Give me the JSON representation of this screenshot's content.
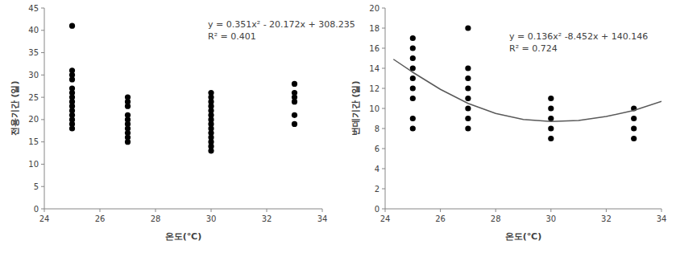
{
  "chart_data": [
    {
      "type": "scatter",
      "xlabel": "온도(℃)",
      "ylabel": "전용기간 (일)",
      "annotations": [
        "y = 0.351x² - 20.172x + 308.235",
        "R² = 0.401"
      ],
      "xlim": [
        24,
        34
      ],
      "xticks": [
        24,
        26,
        28,
        30,
        32,
        34
      ],
      "ylim": [
        0,
        45
      ],
      "yticks": [
        0,
        5,
        10,
        15,
        20,
        25,
        30,
        35,
        40,
        45
      ],
      "grid": false,
      "series": [
        {
          "type": "scatter",
          "color": "#000000",
          "marker": "circle",
          "x": [
            25,
            25,
            25,
            25,
            25,
            25,
            25,
            25,
            25,
            25,
            25,
            25,
            25,
            25,
            27,
            27,
            27,
            27,
            27,
            27,
            27,
            27,
            27,
            27,
            30,
            30,
            30,
            30,
            30,
            30,
            30,
            30,
            30,
            30,
            30,
            30,
            30,
            30,
            33,
            33,
            33,
            33,
            33,
            33
          ],
          "values": [
            41,
            31,
            30,
            29,
            27,
            26,
            25,
            24,
            23,
            22,
            21,
            20,
            19,
            18,
            25,
            24,
            23,
            21,
            20,
            19,
            18,
            17,
            16,
            15,
            26,
            25,
            24,
            23,
            22,
            21,
            20,
            19,
            18,
            17,
            16,
            15,
            14,
            13,
            28,
            26,
            25,
            24,
            21,
            19
          ]
        }
      ]
    },
    {
      "type": "scatter",
      "xlabel": "온도(℃)",
      "ylabel": "번데기간 (일)",
      "annotations": [
        "y = 0.136x² -8.452x + 140.146",
        "R² = 0.724"
      ],
      "xlim": [
        24,
        34
      ],
      "xticks": [
        24,
        26,
        28,
        30,
        32,
        34
      ],
      "ylim": [
        0,
        20
      ],
      "yticks": [
        0,
        2,
        4,
        6,
        8,
        10,
        12,
        14,
        16,
        18,
        20
      ],
      "grid": false,
      "series": [
        {
          "type": "scatter",
          "color": "#000000",
          "marker": "circle",
          "x": [
            25,
            25,
            25,
            25,
            25,
            25,
            25,
            25,
            25,
            27,
            27,
            27,
            27,
            27,
            27,
            27,
            27,
            30,
            30,
            30,
            30,
            30,
            33,
            33,
            33,
            33
          ],
          "values": [
            17,
            16,
            15,
            14,
            13,
            12,
            11,
            9,
            8,
            18,
            14,
            13,
            12,
            11,
            10,
            9,
            8,
            11,
            10,
            9,
            8,
            7,
            10,
            9,
            8,
            7
          ]
        },
        {
          "type": "line",
          "color": "#595959",
          "line_style": "solid",
          "x": [
            24.3,
            25,
            26,
            27,
            28,
            29,
            30,
            31,
            32,
            33,
            34
          ],
          "values": [
            14.9,
            13.6,
            11.9,
            10.5,
            9.5,
            8.9,
            8.7,
            8.8,
            9.2,
            9.8,
            10.7
          ]
        }
      ]
    }
  ]
}
